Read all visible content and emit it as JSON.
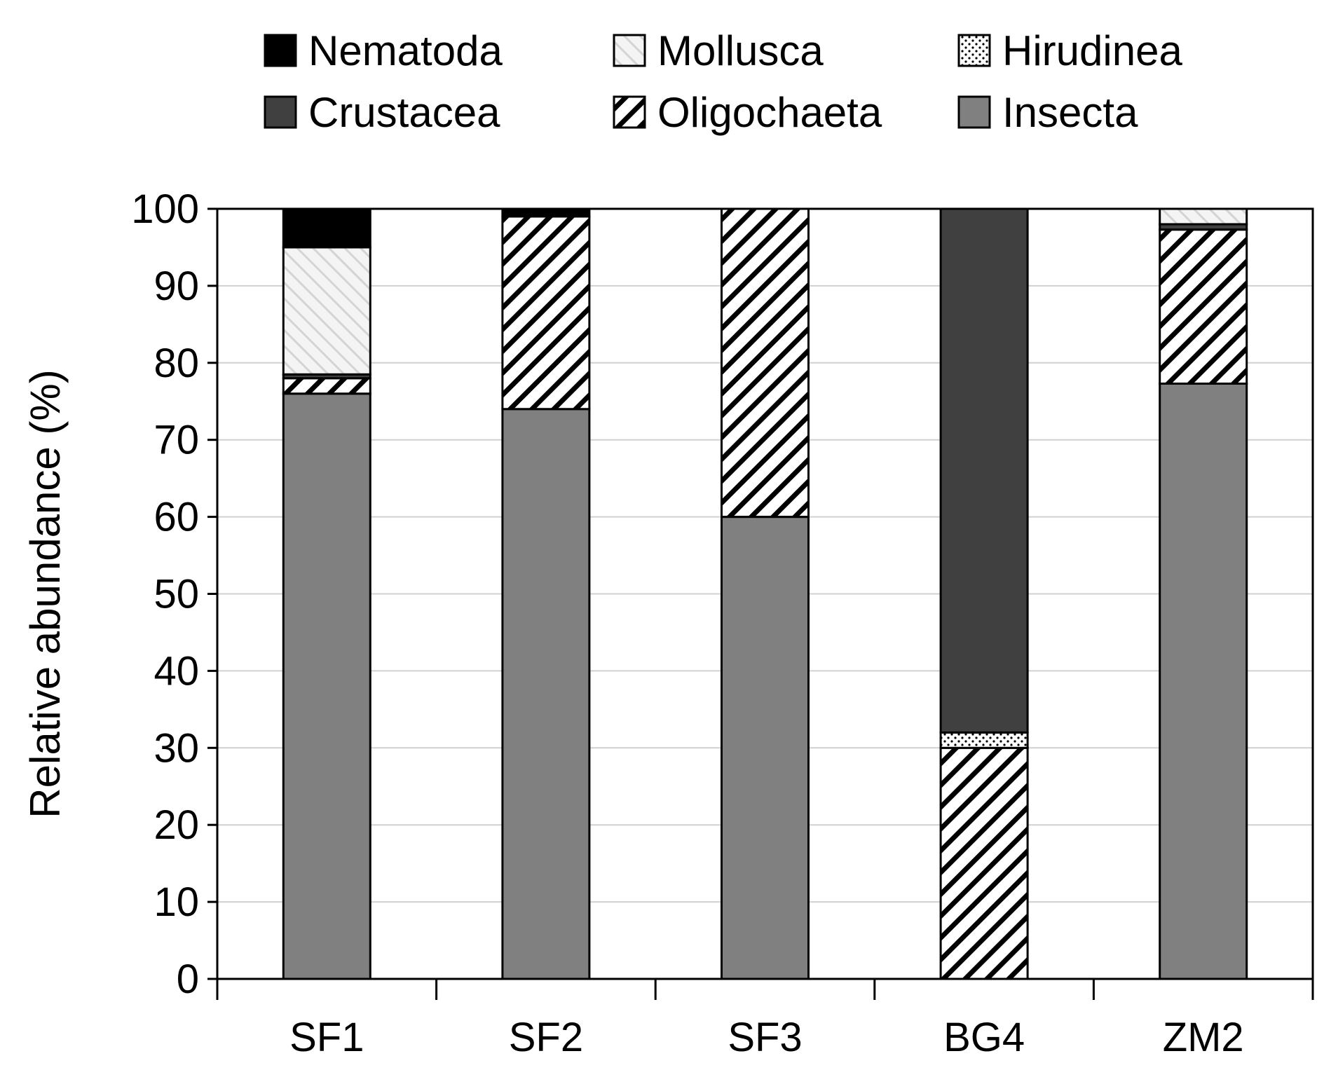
{
  "chart_data": {
    "type": "bar",
    "stacked": true,
    "title": "",
    "xlabel": "",
    "ylabel": "Relative abundance (%)",
    "ylim": [
      0,
      100
    ],
    "yticks": [
      0,
      10,
      20,
      30,
      40,
      50,
      60,
      70,
      80,
      90,
      100
    ],
    "grid": "horizontal",
    "legend_placement": "top",
    "categories": [
      "SF1",
      "SF2",
      "SF3",
      "BG4",
      "ZM2"
    ],
    "series": [
      {
        "name": "Insecta",
        "key": "insecta",
        "values": [
          76,
          74,
          60,
          0,
          77.3
        ]
      },
      {
        "name": "Oligochaeta",
        "key": "oligochaeta",
        "values": [
          2,
          25,
          40,
          30,
          20
        ]
      },
      {
        "name": "Hirudinea",
        "key": "hirudinea",
        "values": [
          0,
          0,
          0,
          2,
          0
        ]
      },
      {
        "name": "Crustacea",
        "key": "crustacea",
        "values": [
          0.5,
          0,
          0,
          68,
          0.7
        ]
      },
      {
        "name": "Mollusca",
        "key": "mollusca",
        "values": [
          16.5,
          0,
          0,
          0,
          2
        ]
      },
      {
        "name": "Nematoda",
        "key": "nematoda",
        "values": [
          5,
          1,
          0,
          0,
          0
        ]
      }
    ],
    "legend_order": [
      "Nematoda",
      "Mollusca",
      "Hirudinea",
      "Crustacea",
      "Oligochaeta",
      "Insecta"
    ],
    "colors": {
      "insecta": "#808080",
      "oligochaeta": "#ffffff",
      "hirudinea": "#ffffff",
      "crustacea": "#404040",
      "mollusca": "#f2f2f2",
      "nematoda": "#000000",
      "gridline": "#d0d0d0",
      "axis": "#000000"
    },
    "legend_swatch_fills": {
      "Nematoda": "#000000",
      "Mollusca": "#f2f2f2",
      "Hirudinea": "#ffffff",
      "Crustacea": "#ffffff",
      "Oligochaeta": "#ffffff",
      "Insecta": "#808080"
    }
  }
}
